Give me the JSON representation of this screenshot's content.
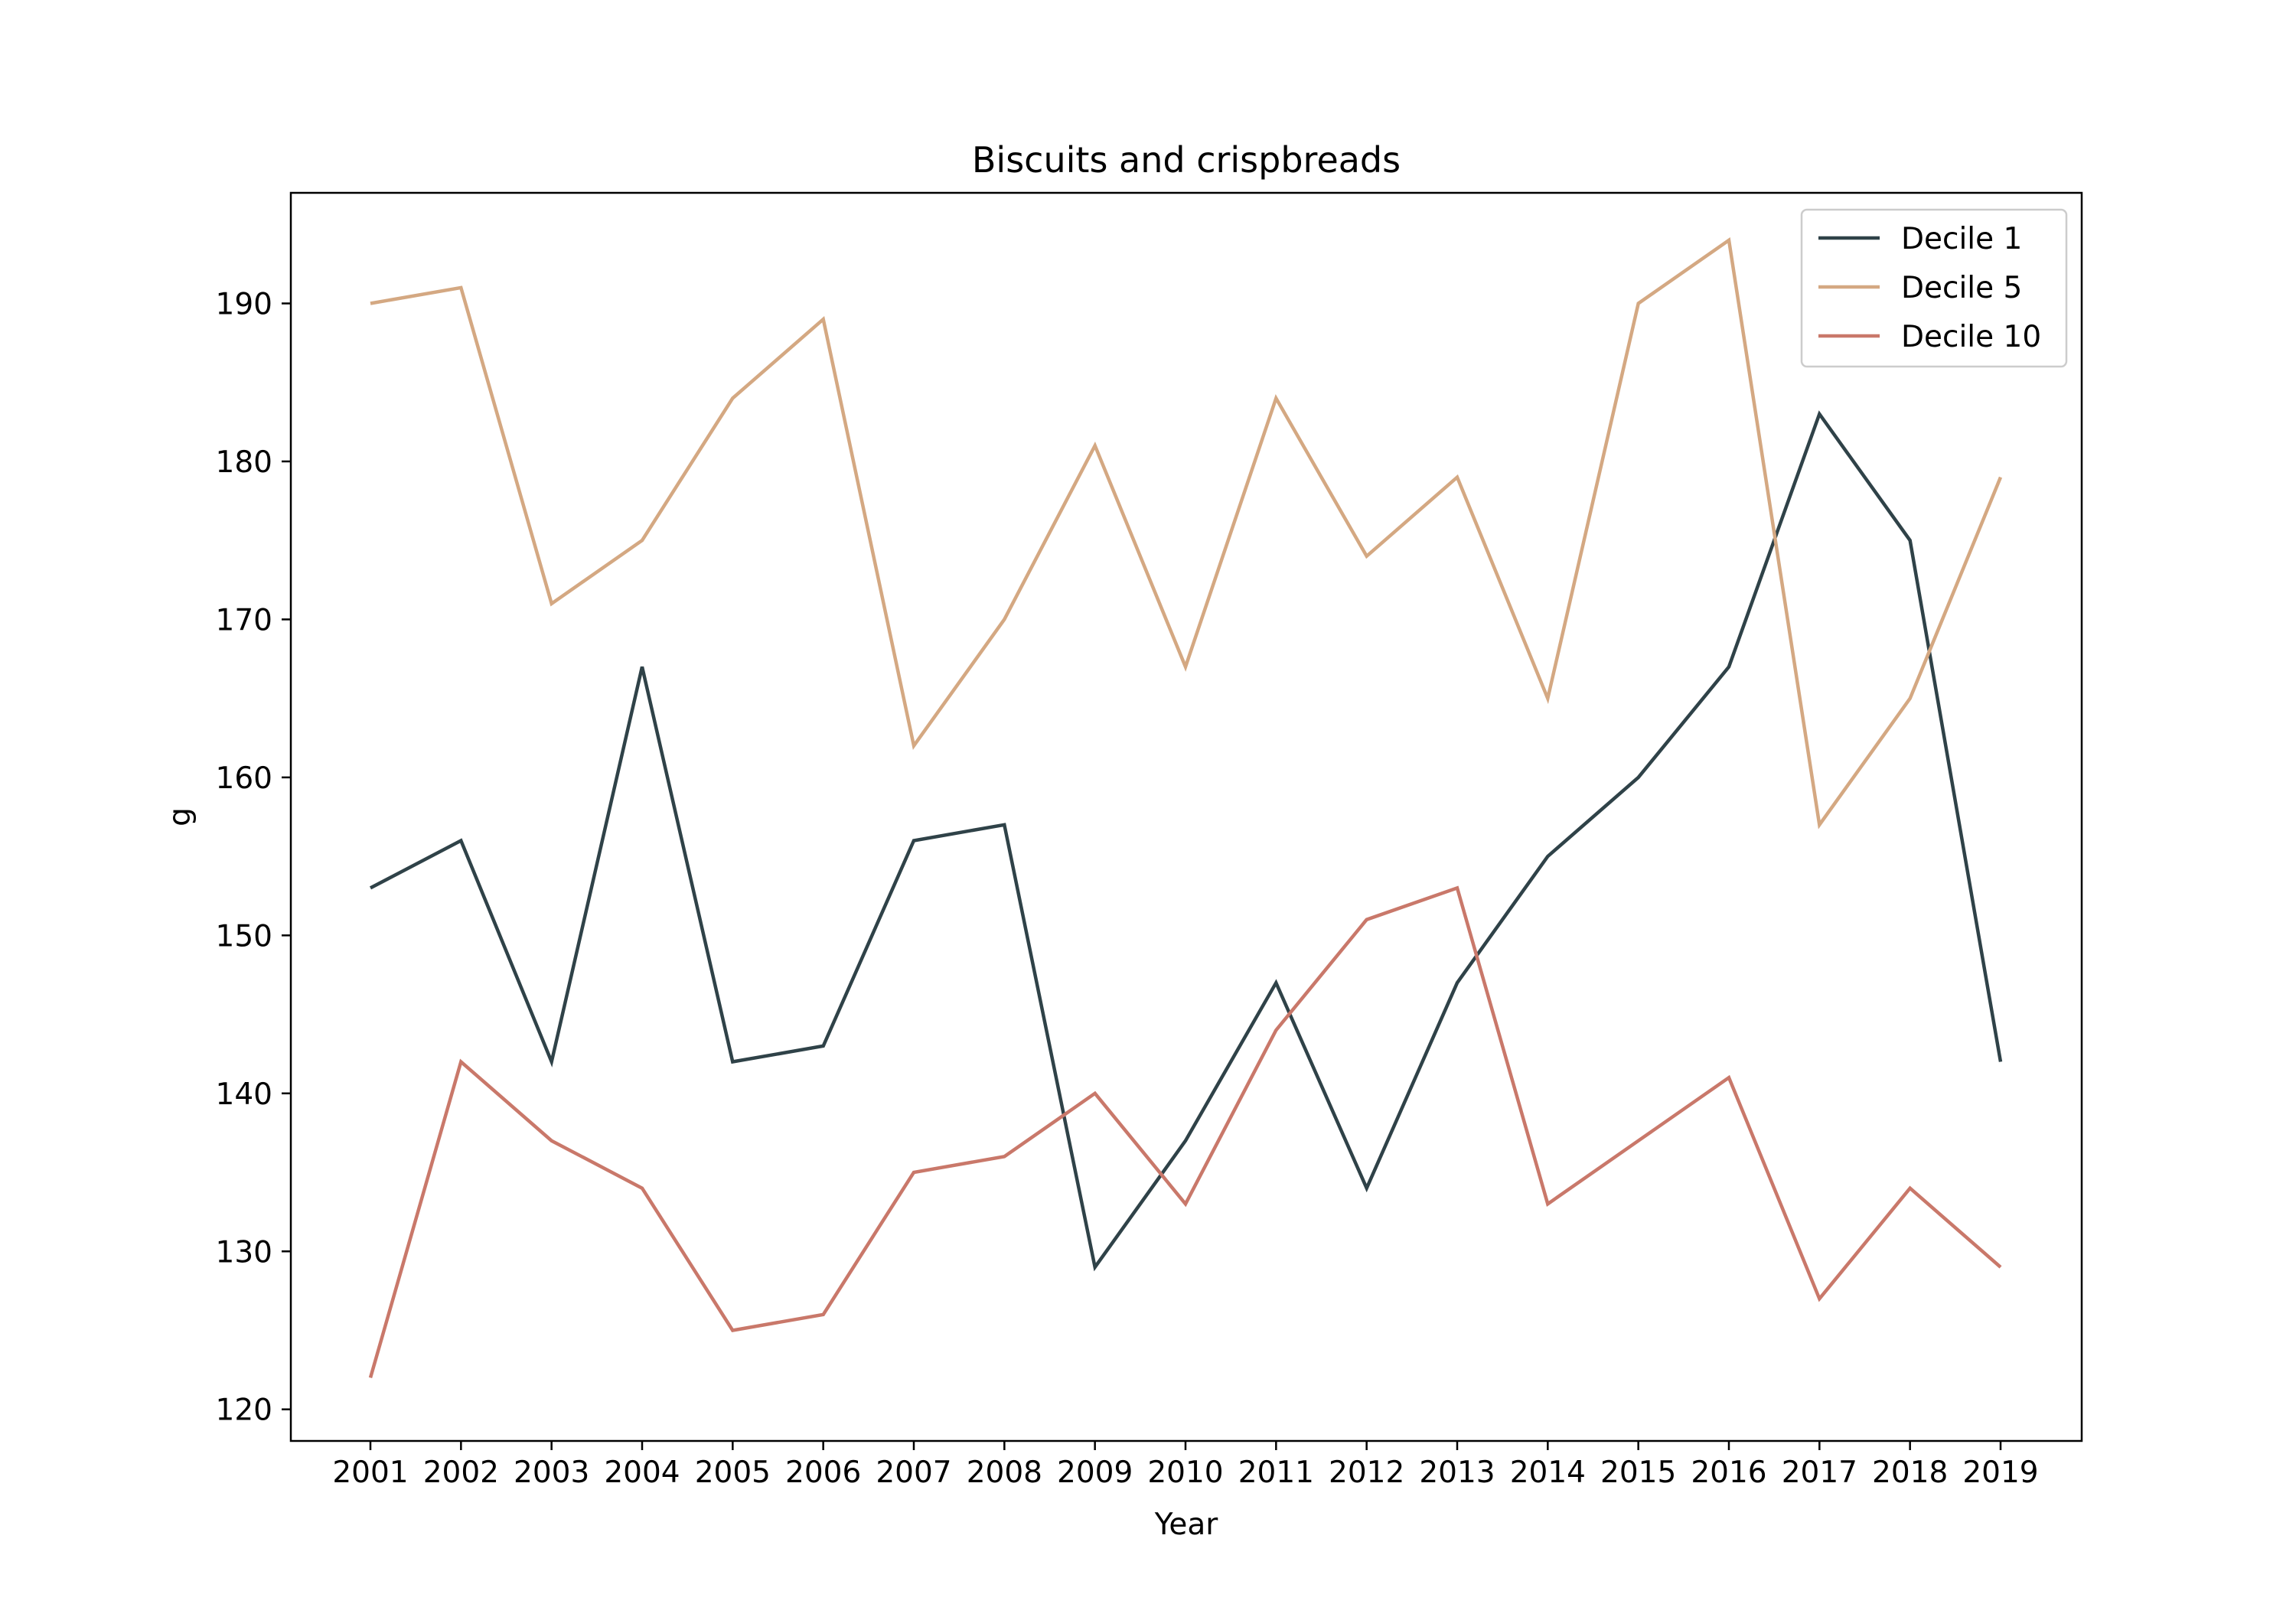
{
  "chart_data": {
    "type": "line",
    "title": "Biscuits and crispbreads",
    "xlabel": "Year",
    "ylabel": "g",
    "categories": [
      "2001",
      "2002",
      "2003",
      "2004",
      "2005",
      "2006",
      "2007",
      "2008",
      "2009",
      "2010",
      "2011",
      "2012",
      "2013",
      "2014",
      "2015",
      "2016",
      "2017",
      "2018",
      "2019"
    ],
    "ylim": [
      118,
      197
    ],
    "yticks": [
      120,
      130,
      140,
      150,
      160,
      170,
      180,
      190
    ],
    "grid": false,
    "legend_position": "top-right",
    "series": [
      {
        "name": "Decile 1",
        "color": "#2f4248",
        "values": [
          153,
          156,
          142,
          167,
          142,
          143,
          156,
          157,
          129,
          137,
          147,
          134,
          147,
          155,
          160,
          167,
          183,
          175,
          142
        ]
      },
      {
        "name": "Decile 5",
        "color": "#d4a882",
        "values": [
          190,
          191,
          171,
          175,
          184,
          189,
          162,
          170,
          181,
          167,
          184,
          174,
          179,
          165,
          190,
          194,
          157,
          165,
          179
        ]
      },
      {
        "name": "Decile 10",
        "color": "#c9786a",
        "values": [
          122,
          142,
          137,
          134,
          125,
          126,
          135,
          136,
          140,
          133,
          144,
          151,
          153,
          133,
          137,
          141,
          127,
          134,
          129
        ]
      }
    ]
  }
}
